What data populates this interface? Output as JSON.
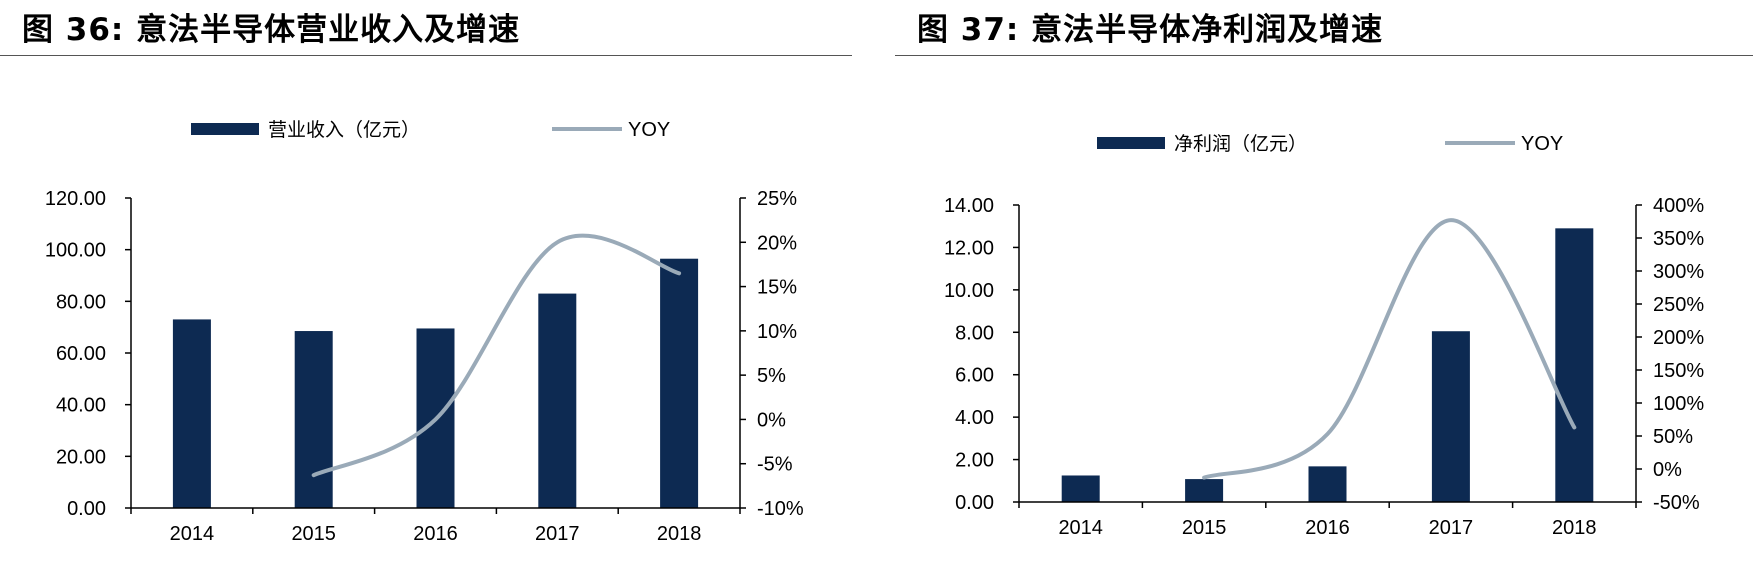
{
  "colors": {
    "bar": "#0d2a52",
    "line": "#9aaab8",
    "axis": "#000000",
    "rule": "#555555"
  },
  "chart_data": [
    {
      "type": "bar",
      "title": "图 36:  意法半导体营业收入及增速",
      "categories": [
        "2014",
        "2015",
        "2016",
        "2017",
        "2018"
      ],
      "series": [
        {
          "name": "营业收入（亿元）",
          "type": "bar",
          "axis": "left",
          "values": [
            73.0,
            68.5,
            69.5,
            83.0,
            96.5
          ]
        },
        {
          "name": "YOY",
          "type": "line",
          "axis": "right",
          "values": [
            null,
            -6.3,
            0.0,
            20.0,
            16.5
          ]
        }
      ],
      "y_left": {
        "min": 0,
        "max": 120,
        "step": 20,
        "ticks": [
          "0.00",
          "20.00",
          "40.00",
          "60.00",
          "80.00",
          "100.00",
          "120.00"
        ]
      },
      "y_right": {
        "min": -10,
        "max": 25,
        "step": 5,
        "ticks": [
          "-10%",
          "-5%",
          "0%",
          "5%",
          "10%",
          "15%",
          "20%",
          "25%"
        ]
      },
      "legend_position": "top"
    },
    {
      "type": "bar",
      "title": "图 37:  意法半导体净利润及增速",
      "categories": [
        "2014",
        "2015",
        "2016",
        "2017",
        "2018"
      ],
      "series": [
        {
          "name": "净利润（亿元）",
          "type": "bar",
          "axis": "left",
          "values": [
            1.25,
            1.08,
            1.68,
            8.05,
            12.9
          ]
        },
        {
          "name": "YOY",
          "type": "line",
          "axis": "right",
          "values": [
            null,
            -13,
            53,
            377,
            63
          ]
        }
      ],
      "y_left": {
        "min": 0,
        "max": 14,
        "step": 2,
        "ticks": [
          "0.00",
          "2.00",
          "4.00",
          "6.00",
          "8.00",
          "10.00",
          "12.00",
          "14.00"
        ]
      },
      "y_right": {
        "min": -50,
        "max": 400,
        "step": 50,
        "ticks": [
          "-50%",
          "0%",
          "50%",
          "100%",
          "150%",
          "200%",
          "250%",
          "300%",
          "350%",
          "400%"
        ]
      },
      "legend_position": "top"
    }
  ]
}
